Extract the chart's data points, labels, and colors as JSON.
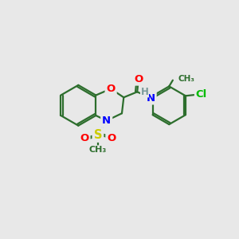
{
  "bg_color": "#e8e8e8",
  "atom_colors": {
    "O": "#ff0000",
    "N": "#0000ff",
    "S": "#cccc00",
    "Cl": "#00bb00",
    "C": "#2d6e2d",
    "H": "#7a9a9a"
  },
  "bond_color": "#2d6e2d",
  "bond_lw": 1.6,
  "font_size": 9.5,
  "figsize": [
    3.0,
    3.0
  ],
  "dpi": 100
}
